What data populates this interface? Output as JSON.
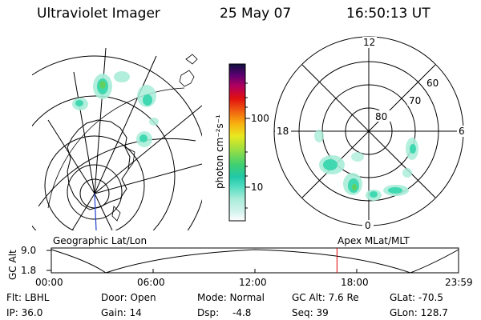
{
  "header": {
    "instrument": "Ultraviolet Imager",
    "date": "25 May 07",
    "time": "16:50:13 UT"
  },
  "colorbar": {
    "unit_label": "photon cm⁻²s⁻¹",
    "ticks": [
      "100",
      "10"
    ]
  },
  "polar_plot": {
    "mlt_labels": [
      "12",
      "18",
      "6",
      "0"
    ],
    "mlat_labels": [
      "60",
      "70",
      "80"
    ]
  },
  "orbit_plot": {
    "left_title": "Geographic Lat/Lon",
    "right_title": "Apex MLat/MLT",
    "ylabel": "GC Alt",
    "y_ticks": [
      "9.0",
      "1.8"
    ],
    "x_ticks": [
      "00:00",
      "06:00",
      "12:00",
      "18:00",
      "23:59"
    ],
    "current_time_fraction": 0.7015,
    "marker_color": "#e00000"
  },
  "info": {
    "filter": "Flt: LBHL",
    "door": "Door: Open",
    "mode": "Mode: Normal",
    "gc_alt": "GC Alt: 7.6 Re",
    "glat": "GLat: -70.5",
    "ip": "IP: 36.0",
    "gain": "Gain: 14",
    "dsp_label": "Dsp:",
    "dsp_value": "-4.8",
    "seq": "Seq: 39",
    "glon": "GLon: 128.7"
  },
  "colors": {
    "aurora_low": "#a8ecd8",
    "aurora_mid": "#40d8b0",
    "aurora_high": "#20b8a0",
    "aurora_peak": "#60d060"
  }
}
